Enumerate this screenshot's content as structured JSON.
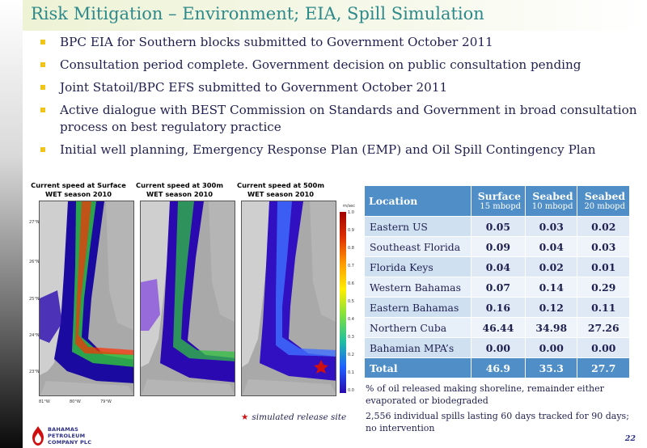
{
  "slide": {
    "title": "Risk Mitigation – Environment; EIA, Spill Simulation",
    "page_number": "22"
  },
  "bullets": [
    "BPC EIA for Southern blocks submitted to Government October 2011",
    "Consultation period complete. Government decision on public consultation pending",
    "Joint Statoil/BPC EFS submitted to Government October 2011",
    "Active dialogue with BEST Commission on Standards and Government in broad consultation process on best regulatory practice",
    "Initial well planning, Emergency Response Plan (EMP) and Oil Spill Contingency Plan"
  ],
  "maps": {
    "captions": [
      "Current speed at Surface\nWET season 2010",
      "Current speed at 300m\nWET season 2010",
      "Current speed at 500m\nWET season 2010"
    ],
    "colorbar_unit": "m/sec",
    "colorbar_ticks": [
      "1.0",
      "0.9",
      "0.8",
      "0.7",
      "0.6",
      "0.5",
      "0.4",
      "0.3",
      "0.2",
      "0.1",
      "0.0"
    ],
    "lat_labels": [
      "27°N",
      "26°N",
      "25°N",
      "24°N",
      "23°N"
    ],
    "lon_labels": [
      "81°W",
      "80°W",
      "79°W"
    ],
    "release_note": "simulated release site",
    "colors": {
      "land": "#a9a9a9",
      "stream": "#1a0aa0",
      "jet": "#30c040",
      "core": "#ff3000"
    }
  },
  "table": {
    "headers": [
      {
        "label": "Location",
        "sub": ""
      },
      {
        "label": "Surface",
        "sub": "15 mbopd"
      },
      {
        "label": "Seabed",
        "sub": "10 mbopd"
      },
      {
        "label": "Seabed",
        "sub": "20 mbopd"
      }
    ],
    "rows": [
      [
        "Eastern US",
        "0.05",
        "0.03",
        "0.02"
      ],
      [
        "Southeast Florida",
        "0.09",
        "0.04",
        "0.03"
      ],
      [
        "Florida Keys",
        "0.04",
        "0.02",
        "0.01"
      ],
      [
        "Western Bahamas",
        "0.07",
        "0.14",
        "0.29"
      ],
      [
        "Eastern Bahamas",
        "0.16",
        "0.12",
        "0.11"
      ],
      [
        "Northern Cuba",
        "46.44",
        "34.98",
        "27.26"
      ],
      [
        "Bahamian MPA’s",
        "0.00",
        "0.00",
        "0.00"
      ]
    ],
    "total": [
      "Total",
      "46.9",
      "35.3",
      "27.7"
    ]
  },
  "footnotes": [
    "% of oil released making shoreline, remainder either evaporated or biodegraded",
    "2,556 individual spills lasting 60 days tracked for 90 days; no intervention"
  ],
  "logo": {
    "lines": [
      "BAHAMAS",
      "PETROLEUM",
      "COMPANY PLC"
    ]
  }
}
